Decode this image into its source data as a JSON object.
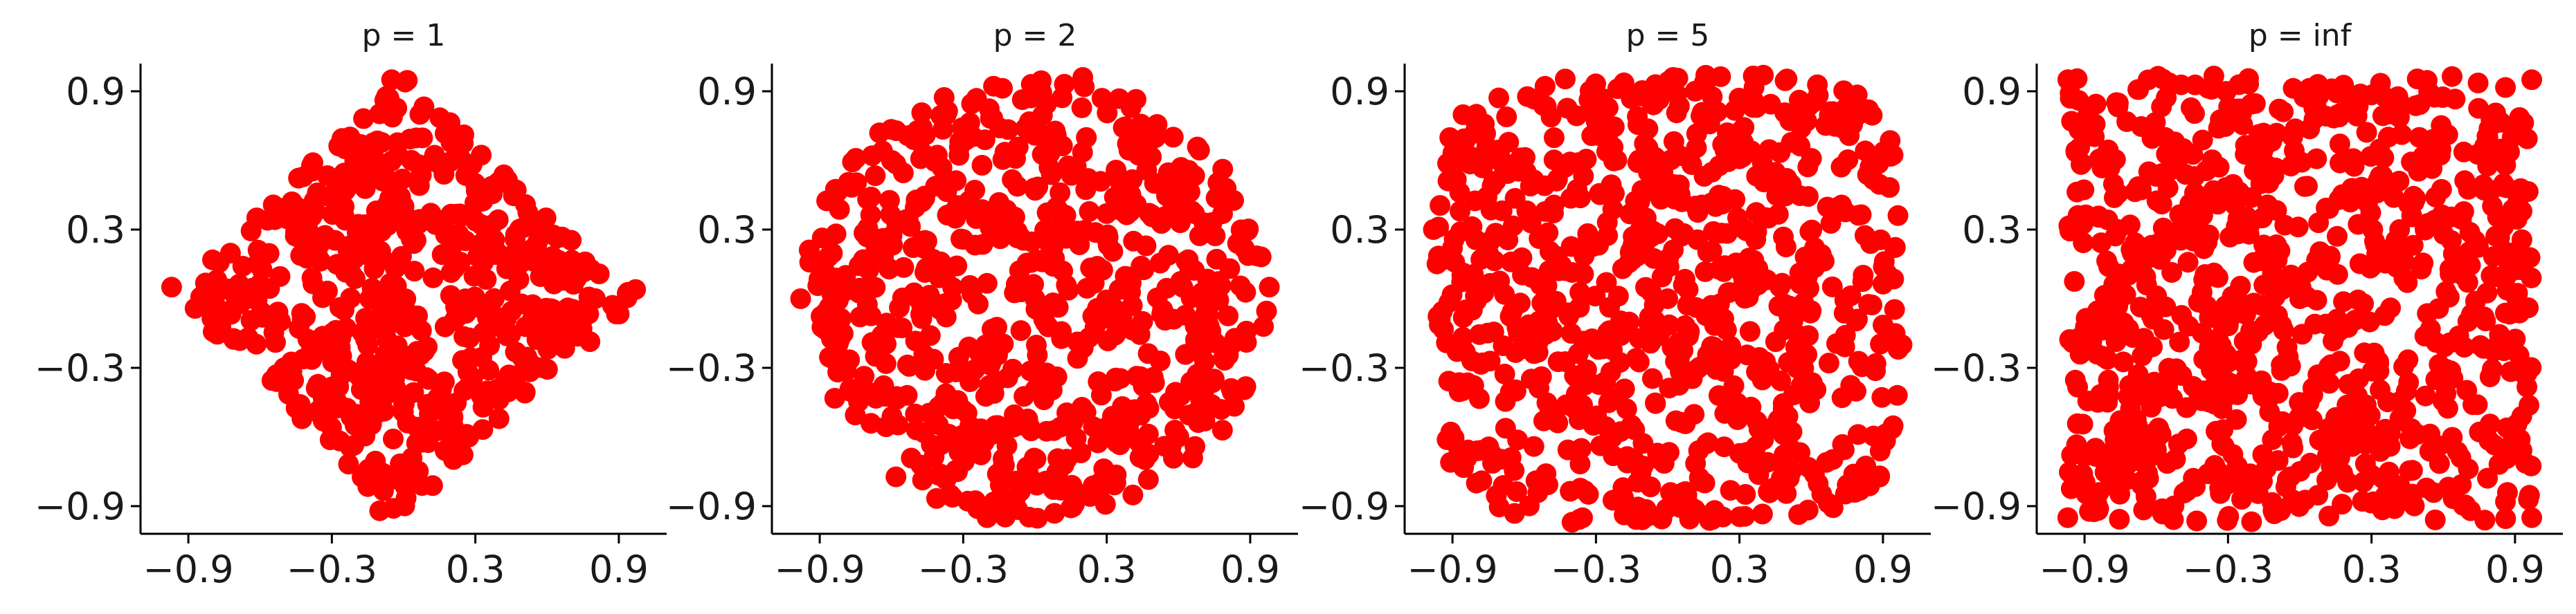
{
  "chart_data": [
    {
      "type": "scatter",
      "title": "p = 1",
      "p": 1,
      "n_points": 600,
      "xlabel": "",
      "ylabel": "",
      "xlim": [
        -1.1,
        1.1
      ],
      "ylim": [
        -1.02,
        1.02
      ],
      "xticks": [
        -0.9,
        -0.3,
        0.3,
        0.9
      ],
      "yticks": [
        -0.9,
        -0.3,
        0.3,
        0.9
      ],
      "xtick_labels": [
        "−0.9",
        "−0.3",
        "0.3",
        "0.9"
      ],
      "ytick_labels": [
        "−0.9",
        "−0.3",
        "0.3",
        "0.9"
      ],
      "color": "#ff0000",
      "grid": false,
      "legend": "none",
      "samples": [
        [
          -0.97,
          0.05
        ],
        [
          0.97,
          0.04
        ],
        [
          -0.05,
          0.95
        ],
        [
          -0.1,
          -0.92
        ],
        [
          0.0,
          0.0
        ],
        [
          0.3,
          0.5
        ],
        [
          -0.4,
          0.3
        ],
        [
          0.35,
          -0.4
        ],
        [
          -0.5,
          -0.3
        ],
        [
          0.6,
          0.1
        ]
      ]
    },
    {
      "type": "scatter",
      "title": "p = 2",
      "p": 2,
      "n_points": 700,
      "xlabel": "",
      "ylabel": "",
      "xlim": [
        -1.1,
        1.1
      ],
      "ylim": [
        -1.02,
        1.02
      ],
      "xticks": [
        -0.9,
        -0.3,
        0.3,
        0.9
      ],
      "yticks": [
        -0.9,
        -0.3,
        0.3,
        0.9
      ],
      "xtick_labels": [
        "−0.9",
        "−0.3",
        "0.3",
        "0.9"
      ],
      "ytick_labels": [
        "−0.9",
        "−0.3",
        "0.3",
        "0.9"
      ],
      "color": "#ff0000",
      "grid": false,
      "legend": "none",
      "samples": [
        [
          -0.98,
          0.0
        ],
        [
          0.98,
          0.05
        ],
        [
          0.2,
          0.96
        ],
        [
          -0.2,
          -0.95
        ],
        [
          0.0,
          0.0
        ],
        [
          0.5,
          0.5
        ],
        [
          -0.6,
          0.6
        ],
        [
          0.6,
          -0.6
        ],
        [
          -0.5,
          -0.5
        ],
        [
          0.1,
          0.3
        ]
      ]
    },
    {
      "type": "scatter",
      "title": "p = 5",
      "p": 5,
      "n_points": 800,
      "xlabel": "",
      "ylabel": "",
      "xlim": [
        -1.1,
        1.1
      ],
      "ylim": [
        -1.02,
        1.02
      ],
      "xticks": [
        -0.9,
        -0.3,
        0.3,
        0.9
      ],
      "yticks": [
        -0.9,
        -0.3,
        0.3,
        0.9
      ],
      "xtick_labels": [
        "−0.9",
        "−0.3",
        "0.3",
        "0.9"
      ],
      "ytick_labels": [
        "−0.9",
        "−0.3",
        "0.3",
        "0.9"
      ],
      "color": "#ff0000",
      "grid": false,
      "legend": "none",
      "samples": [
        [
          -0.98,
          0.3
        ],
        [
          0.98,
          -0.2
        ],
        [
          0.4,
          0.97
        ],
        [
          -0.4,
          -0.97
        ],
        [
          0.0,
          0.0
        ],
        [
          0.8,
          0.8
        ],
        [
          -0.8,
          0.8
        ],
        [
          0.8,
          -0.8
        ],
        [
          -0.8,
          -0.8
        ],
        [
          0.2,
          0.4
        ]
      ]
    },
    {
      "type": "scatter",
      "title": "p = inf",
      "p": "inf",
      "n_points": 900,
      "xlabel": "",
      "ylabel": "",
      "xlim": [
        -1.1,
        1.1
      ],
      "ylim": [
        -1.02,
        1.02
      ],
      "xticks": [
        -0.9,
        -0.3,
        0.3,
        0.9
      ],
      "yticks": [
        -0.9,
        -0.3,
        0.3,
        0.9
      ],
      "xtick_labels": [
        "−0.9",
        "−0.3",
        "0.3",
        "0.9"
      ],
      "ytick_labels": [
        "−0.9",
        "−0.3",
        "0.3",
        "0.9"
      ],
      "color": "#ff0000",
      "grid": false,
      "legend": "none",
      "samples": [
        [
          -0.97,
          0.95
        ],
        [
          0.97,
          0.95
        ],
        [
          -0.97,
          -0.95
        ],
        [
          0.97,
          -0.95
        ],
        [
          0.0,
          0.0
        ],
        [
          0.5,
          0.7
        ],
        [
          -0.6,
          0.2
        ],
        [
          0.3,
          -0.6
        ],
        [
          -0.4,
          -0.4
        ],
        [
          0.8,
          0.1
        ]
      ]
    }
  ]
}
